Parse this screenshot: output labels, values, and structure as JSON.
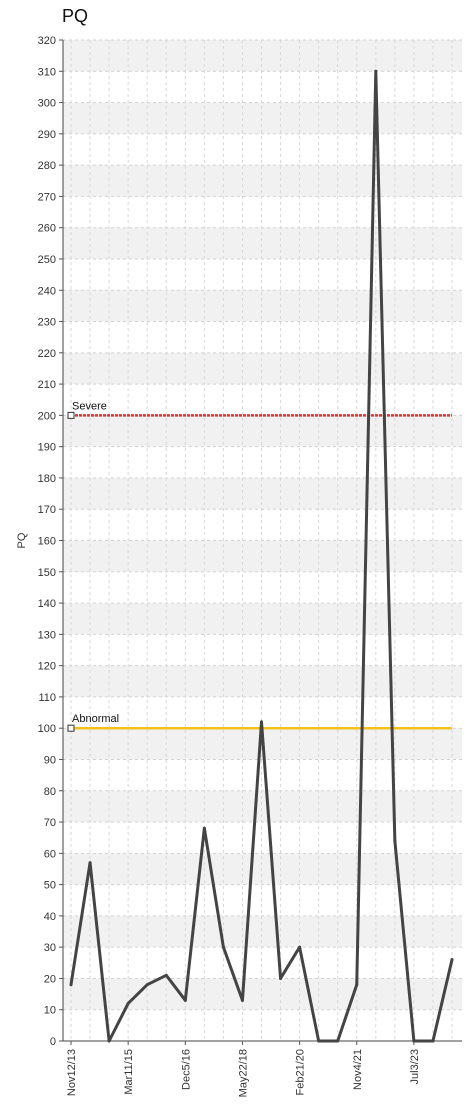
{
  "chart_data": {
    "type": "line",
    "title": "PQ",
    "xlabel": "",
    "ylabel": "PQ",
    "ylim": [
      0,
      320
    ],
    "yticks_step": 10,
    "grid": true,
    "x_tick_labels": [
      "Nov12/13",
      "Mar11/15",
      "Dec5/16",
      "May22/18",
      "Feb21/20",
      "Nov4/21",
      "Jul3/23"
    ],
    "series": [
      {
        "color": "#444444",
        "values": [
          18,
          57,
          0,
          12,
          18,
          21,
          13,
          68,
          30,
          13,
          102,
          20,
          30,
          0,
          0,
          18,
          310,
          64,
          0,
          0,
          26
        ]
      }
    ],
    "reference_lines": [
      {
        "label": "Severe",
        "value": 200,
        "color": "#e8302a"
      },
      {
        "label": "Abnormal",
        "value": 100,
        "color": "#f2c21b"
      }
    ]
  }
}
